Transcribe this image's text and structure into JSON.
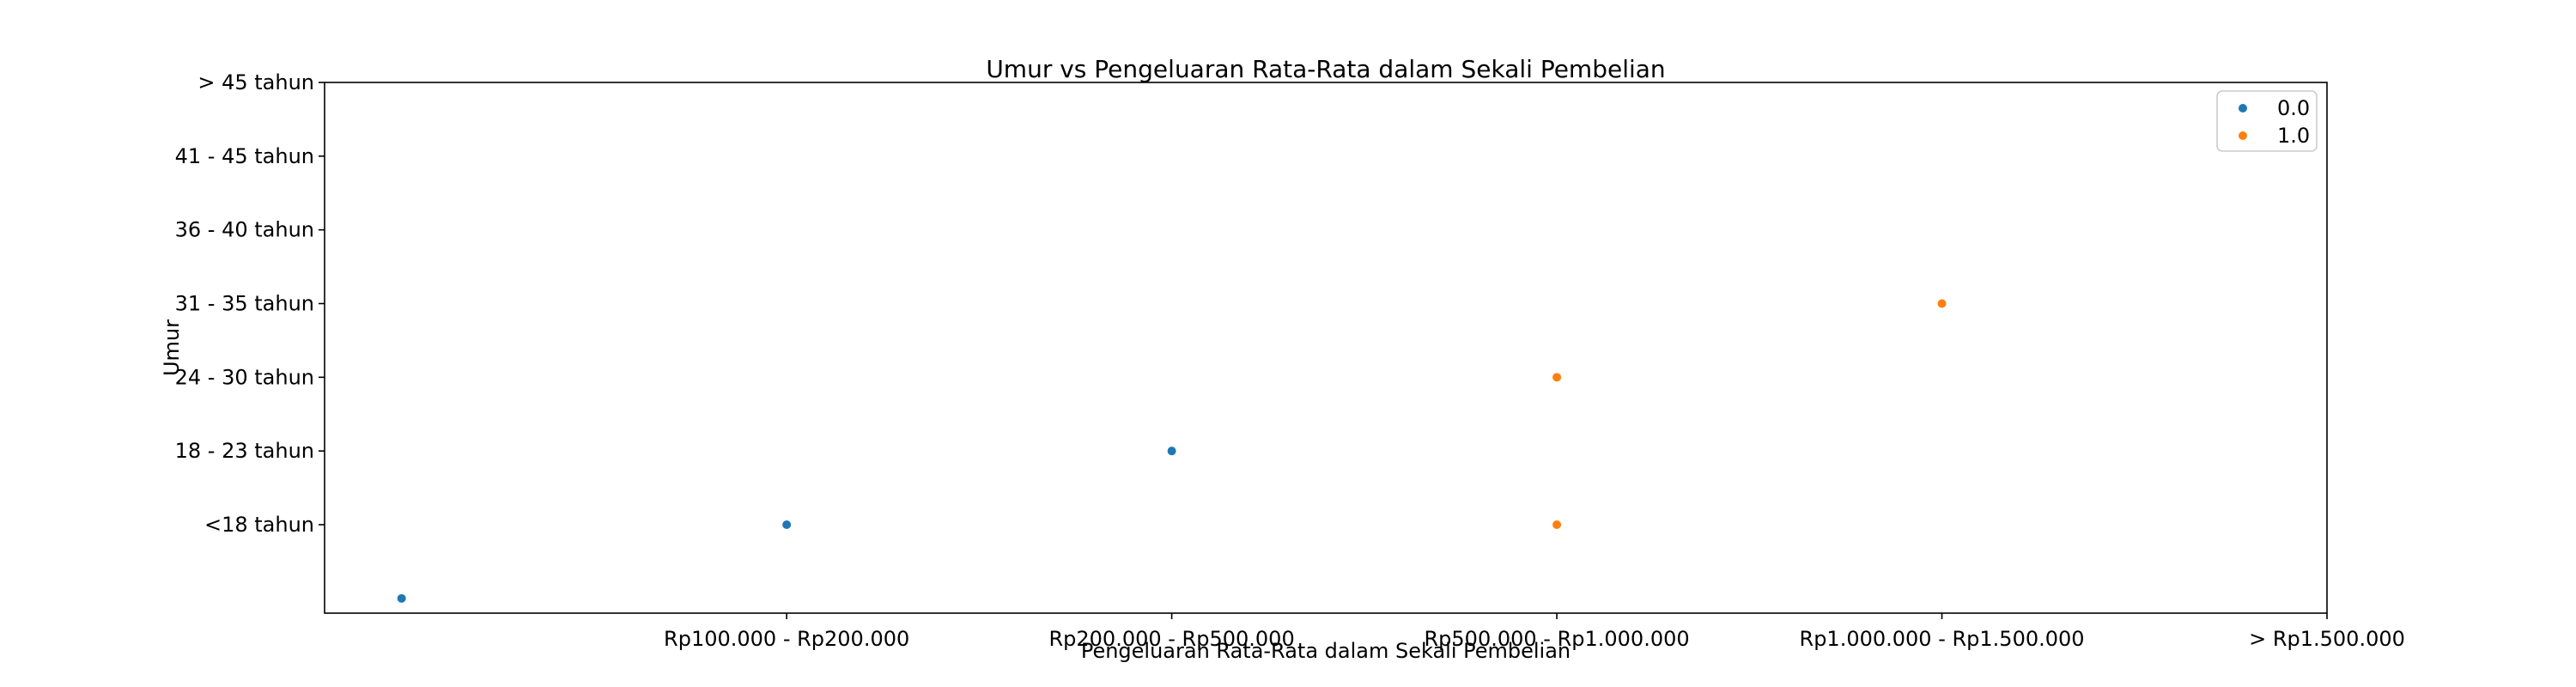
{
  "chart_data": {
    "type": "scatter",
    "title": "Umur vs Pengeluaran Rata-Rata dalam Sekali Pembelian",
    "xlabel": "Pengeluaran Rata-Rata dalam Sekali Pembelian",
    "ylabel": "Umur",
    "x_categories": [
      "",
      "Rp100.000 - Rp200.000",
      "Rp200.000 - Rp500.000",
      "Rp500.000 - Rp1.000.000",
      "Rp1.000.000 - Rp1.500.000",
      "> Rp1.500.000"
    ],
    "y_categories": [
      "",
      "<18 tahun",
      "18 - 23 tahun",
      "24 - 30 tahun",
      "31 - 35 tahun",
      "36 - 40 tahun",
      "41 - 45 tahun",
      "> 45 tahun"
    ],
    "xlim": [
      -0.2,
      5.0
    ],
    "ylim": [
      -0.2,
      7.0
    ],
    "grid": false,
    "legend_position": "top-right",
    "series": [
      {
        "name": "0.0",
        "color": "#1f77b4",
        "points": [
          {
            "x": "",
            "y": ""
          },
          {
            "x": "Rp100.000 - Rp200.000",
            "y": "<18 tahun"
          },
          {
            "x": "Rp200.000 - Rp500.000",
            "y": "18 - 23 tahun"
          }
        ]
      },
      {
        "name": "1.0",
        "color": "#ff7f0e",
        "points": [
          {
            "x": "Rp500.000 - Rp1.000.000",
            "y": "<18 tahun"
          },
          {
            "x": "Rp500.000 - Rp1.000.000",
            "y": "24 - 30 tahun"
          },
          {
            "x": "Rp1.000.000 - Rp1.500.000",
            "y": "31 - 35 tahun"
          }
        ]
      }
    ]
  }
}
